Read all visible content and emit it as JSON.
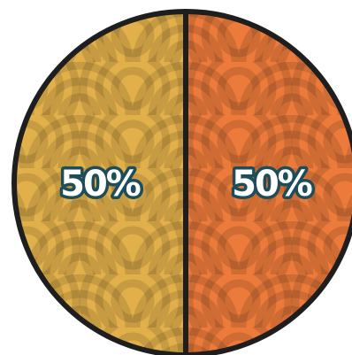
{
  "chart_data": {
    "type": "pie",
    "values": [
      50,
      50
    ],
    "value_labels": [
      "50%",
      "50%"
    ],
    "colors": [
      "#ec7b3b",
      "#e2b04b"
    ]
  }
}
